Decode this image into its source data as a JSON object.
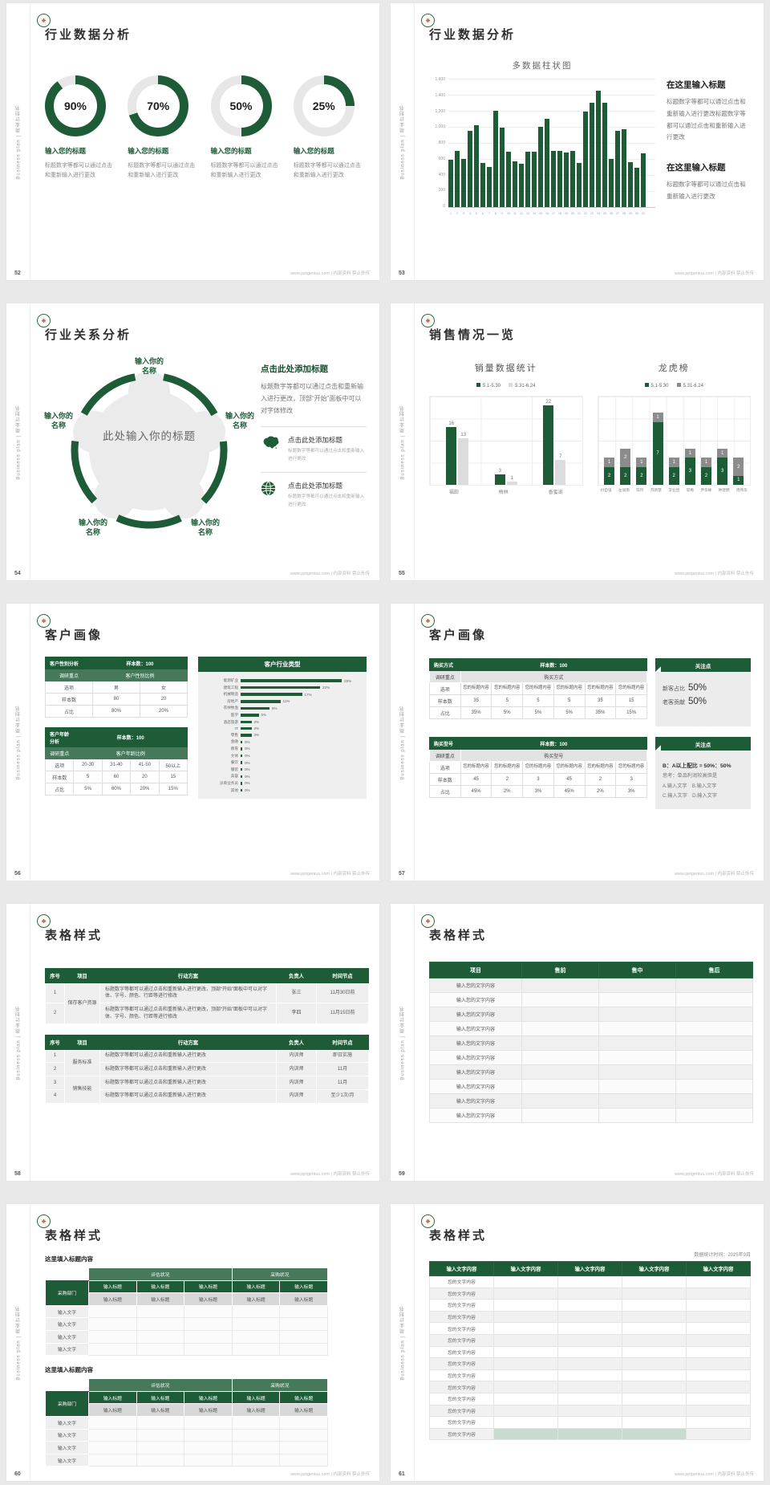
{
  "footer_site": "www.pptgenius.com | 内部资料 禁止外传",
  "sidebar_text": "Business plan | 商业计划书",
  "logo_glyph": "❋",
  "colors": {
    "green": "#1e5c38",
    "mid_green": "#45795a",
    "light_gray": "#d9d9d9",
    "dark_gray": "#8c8c8c",
    "highlight_green": "#c9dbd0"
  },
  "slides": [
    {
      "page": "52",
      "title": "行业数据分析",
      "type": "donuts",
      "donuts": [
        {
          "value": 90,
          "percent": "90%",
          "label": "输入您的标题",
          "desc": "标题数字等都可以通过点击和重新输入进行更改"
        },
        {
          "value": 70,
          "percent": "70%",
          "label": "输入您的标题",
          "desc": "标题数字等都可以通过点击和重新输入进行更改"
        },
        {
          "value": 50,
          "percent": "50%",
          "label": "输入您的标题",
          "desc": "标题数字等都可以通过点击和重新输入进行更改"
        },
        {
          "value": 25,
          "percent": "25%",
          "label": "输入您的标题",
          "desc": "标题数字等都可以通过点击和重新输入进行更改"
        }
      ]
    },
    {
      "page": "53",
      "title": "行业数据分析",
      "type": "multibar",
      "chart": {
        "type": "bar",
        "title": "多数据柱状图",
        "ylim": [
          0,
          1600
        ],
        "y_ticks": [
          "1,600",
          "1,400",
          "1,200",
          "1,000",
          "800",
          "600",
          "400",
          "200",
          "0"
        ],
        "x": [
          "1",
          "2",
          "3",
          "4",
          "5",
          "6",
          "7",
          "8",
          "9",
          "10",
          "11",
          "12",
          "13",
          "14",
          "15",
          "16",
          "17",
          "18",
          "19",
          "20",
          "21",
          "22",
          "23",
          "24",
          "25",
          "26",
          "27",
          "28",
          "29",
          "30",
          "31"
        ],
        "values": [
          590,
          700,
          600,
          950,
          1020,
          550,
          500,
          1200,
          990,
          690,
          575,
          545,
          690,
          695,
          1000,
          1100,
          700,
          700,
          680,
          700,
          550,
          1190,
          1300,
          1450,
          1300,
          600,
          955,
          970,
          560,
          490,
          670
        ]
      },
      "blocks": [
        {
          "heading": "在这里输入标题",
          "text": "标题数字等都可以通过点击和重新输入进行更改标题数字等都可以通过点击和重新输入进行更改"
        },
        {
          "heading": "在这里输入标题",
          "text": "标题数字等都可以通过点击和重新输入进行更改"
        }
      ]
    },
    {
      "page": "54",
      "title": "行业关系分析",
      "type": "relation",
      "center": "此处输入你的标题",
      "petals": [
        "输入你的名称",
        "输入你的名称",
        "输入你的名称",
        "输入你的名称",
        "输入你的名称"
      ],
      "right": {
        "heading": "点击此处添加标题",
        "text": "标题数字等都可以通过点击和重新输入进行更改，顶部“开始”面板中可以对字体修改",
        "items": [
          {
            "icon": "china-map",
            "title": "点击此处添加标题",
            "desc": "标题数字等都可以通过点击和重新输入进行更改"
          },
          {
            "icon": "globe",
            "title": "点击此处添加标题",
            "desc": "标题数字等都可以通过点击和重新输入进行更改"
          }
        ]
      }
    },
    {
      "page": "55",
      "title": "销售情况一览",
      "type": "sales",
      "left_chart": {
        "type": "bar",
        "title": "销量数据统计",
        "legend": [
          "5.1-5.30",
          "5.31-6.24"
        ],
        "categories": [
          "福田",
          "梅林",
          "香蜜湖"
        ],
        "series": [
          {
            "name": "5.1-5.30",
            "values": [
              16,
              3,
              22
            ]
          },
          {
            "name": "5.31-6.24",
            "values": [
              13,
              1,
              7
            ]
          }
        ],
        "ylim": [
          0,
          24
        ]
      },
      "right_chart": {
        "type": "stacked-bar",
        "title": "龙虎榜",
        "legend": [
          "5.1-5.30",
          "5.31-6.24"
        ],
        "categories": [
          "付自强",
          "左润南",
          "陈玲",
          "苏新慧",
          "李业团",
          "常梅",
          "尹华峰",
          "钟建明",
          "周伟华"
        ],
        "series": [
          {
            "name": "5.1-5.30",
            "values": [
              2,
              2,
              2,
              7,
              2,
              3,
              2,
              3,
              1
            ]
          },
          {
            "name": "5.31-6.24",
            "values": [
              1,
              2,
              1,
              1,
              1,
              1,
              1,
              1,
              2
            ]
          }
        ],
        "ylim": [
          0,
          9
        ]
      }
    },
    {
      "page": "56",
      "title": "客户画像",
      "type": "profile-tables",
      "tables": [
        {
          "h1": "客户性别分析",
          "h2": "样本数：100",
          "s1": "调研重点",
          "s2": "客户性别比例",
          "rows": [
            [
              "选项",
              "男",
              "女"
            ],
            [
              "样本数",
              "80",
              "20"
            ],
            [
              "占比",
              "80%",
              "20%"
            ]
          ]
        },
        {
          "h1": "客户年龄分析",
          "h2": "样本数：100",
          "s1": "调研重点",
          "s2": "客户年龄比例",
          "rows": [
            [
              "选项",
              "20-30",
              "31-40",
              "41-50",
              "50以上"
            ],
            [
              "样本数",
              "5",
              "60",
              "20",
              "15"
            ],
            [
              "占比",
              "5%",
              "60%",
              "20%",
              "15%"
            ]
          ]
        }
      ],
      "industry": {
        "type": "bar",
        "title": "客户行业类型",
        "items": [
          [
            "能源矿业",
            28
          ],
          [
            "建筑工程",
            22
          ],
          [
            "机械制造",
            17
          ],
          [
            "房地产",
            11
          ],
          [
            "农林牧渔",
            8
          ],
          [
            "医学",
            5
          ],
          [
            "酒店旅游",
            3
          ],
          [
            "IT",
            3
          ],
          [
            "零售",
            3
          ],
          [
            "金融",
            0
          ],
          [
            "教育",
            0
          ],
          [
            "文体",
            0
          ],
          [
            "餐饮",
            0
          ],
          [
            "服装",
            0
          ],
          [
            "美容",
            0
          ],
          [
            "派单业务员",
            0
          ],
          [
            "其他",
            0
          ]
        ]
      }
    },
    {
      "page": "57",
      "title": "客户画像",
      "type": "purchase-tables",
      "blocks": [
        {
          "h1": "购买方式",
          "h2": "样本数：100",
          "s1": "调研重点",
          "s2": "购买方式",
          "opt_label": "选项",
          "opt_cell": "您的标题内容",
          "cols": 6,
          "rows": [
            [
              "样本数",
              "35",
              "5",
              "5",
              "5",
              "35",
              "15"
            ],
            [
              "占比",
              "35%",
              "5%",
              "5%",
              "5%",
              "35%",
              "15%"
            ]
          ],
          "panel": {
            "title": "关注点",
            "stats": [
              {
                "label": "新客占比",
                "value": "50%"
              },
              {
                "label": "老客贡献",
                "value": "50%"
              }
            ]
          }
        },
        {
          "h1": "购买型号",
          "h2": "样本数：100",
          "s1": "调研重点",
          "s2": "购买型号",
          "opt_label": "选项",
          "opt_cell": "您的标题内容",
          "cols": 6,
          "rows": [
            [
              "样本数",
              "45",
              "2",
              "3",
              "45",
              "2",
              "3"
            ],
            [
              "占比",
              "45%",
              "2%",
              "3%",
              "45%",
              "2%",
              "3%"
            ]
          ],
          "panel": {
            "title": "关注点",
            "lines": [
              "B：A以上配比 = 50%：50%",
              "思考：单品利润较高但是",
              "A.输入文字　B.输入文字",
              "C.输入文字　D.输入文字"
            ]
          }
        }
      ]
    },
    {
      "page": "58",
      "title": "表格样式",
      "type": "action-tables",
      "headers": [
        "序号",
        "项目",
        "行动方案",
        "负责人",
        "时间节点"
      ],
      "tables": [
        {
          "groups": [
            {
              "label": "保存客户资源",
              "rows": [
                {
                  "no": "1",
                  "plan": "标题数字等都可以通过点击和重新输入进行更改，顶部“开始”面板中可以对字体、字号、颜色、行距等进行修改",
                  "owner": "张三",
                  "time": "11月30日前"
                },
                {
                  "no": "2",
                  "plan": "标题数字等都可以通过点击和重新输入进行更改，顶部“开始”面板中可以对字体、字号、颜色、行距等进行修改",
                  "owner": "李四",
                  "time": "11月15日前"
                }
              ]
            }
          ]
        },
        {
          "groups": [
            {
              "label": "服务标准",
              "rows": [
                {
                  "no": "1",
                  "plan": "标题数字等都可以通过点击和重新输入进行更改",
                  "owner": "内训师",
                  "time": "即日实施"
                },
                {
                  "no": "2",
                  "plan": "标题数字等都可以通过点击和重新输入进行更改",
                  "owner": "内训师",
                  "time": "11月"
                }
              ]
            },
            {
              "label": "销售技能",
              "rows": [
                {
                  "no": "3",
                  "plan": "标题数字等都可以通过点击和重新输入进行更改",
                  "owner": "内训师",
                  "time": "11月"
                },
                {
                  "no": "4",
                  "plan": "标题数字等都可以通过点击和重新输入进行更改",
                  "owner": "内训师",
                  "time": "至少1次/月"
                }
              ]
            }
          ]
        }
      ]
    },
    {
      "page": "59",
      "title": "表格样式",
      "type": "simple-table",
      "headers": [
        "项目",
        "售前",
        "售中",
        "售后"
      ],
      "row_label": "输入您的文字内容",
      "row_count": 10
    },
    {
      "page": "60",
      "title": "表格样式",
      "type": "eval-tables",
      "sections": [
        {
          "heading": "这里填入标题内容",
          "group1": "评估状况",
          "group2": "采购状况",
          "left_header": "采购部门",
          "header_cell": "输入标题",
          "sub_cell": "输入标题",
          "body_cell": "输入文字",
          "body_rows": 4,
          "cols": 5
        },
        {
          "heading": "这里填入标题内容",
          "group1": "评估状况",
          "group2": "采购状况",
          "left_header": "采购部门",
          "header_cell": "输入标题",
          "sub_cell": "输入标题",
          "body_cell": "输入文字",
          "body_rows": 4,
          "cols": 5
        }
      ]
    },
    {
      "page": "61",
      "title": "表格样式",
      "type": "data-table",
      "note": "数据统计时间：2025年9月",
      "header_cell": "输入文字内容",
      "cols": 5,
      "row_label": "您的文字内容",
      "row_count": 14
    }
  ]
}
